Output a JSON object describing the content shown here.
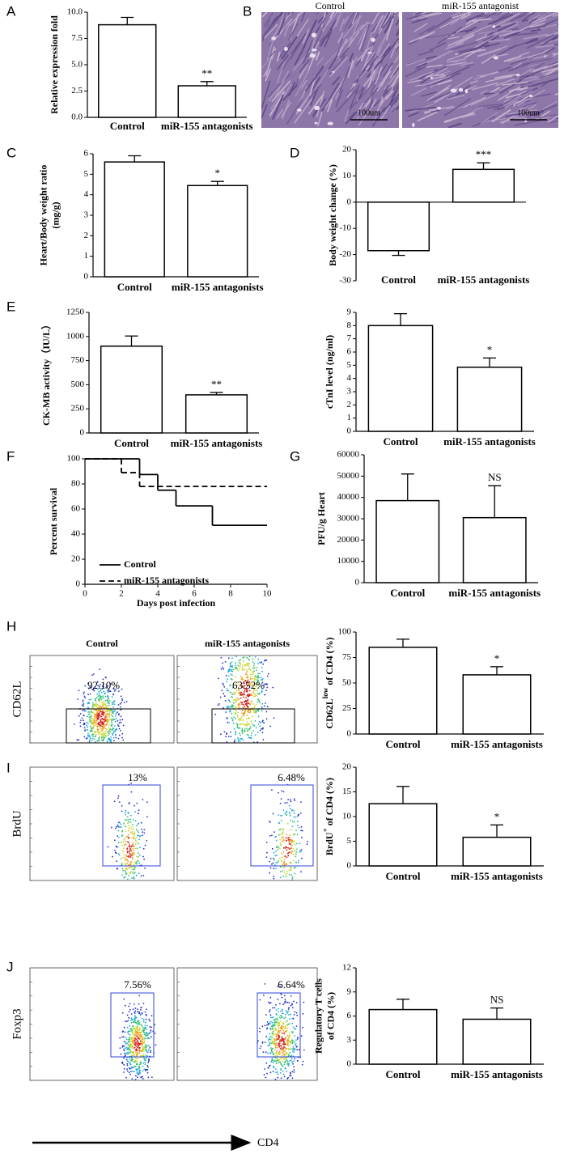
{
  "chart_data": [
    {
      "type": "bar",
      "panel": "A",
      "ylabel": "Relative expression fold",
      "categories": [
        "Control",
        "miR-155 antagonists"
      ],
      "values": [
        8.8,
        3.0
      ],
      "errors": [
        0.7,
        0.4
      ],
      "annotation": "**",
      "ylim": [
        0,
        10
      ],
      "yticks": [
        {
          "value": 0,
          "label": "0.0"
        },
        2.5,
        {
          "value": 5,
          "label": "5.0"
        },
        7.5,
        {
          "value": 10,
          "label": "10.0"
        }
      ]
    },
    {
      "type": "bar",
      "panel": "C",
      "ylabel": [
        "Heart/Body weight ratio",
        "(mg/g)"
      ],
      "categories": [
        "Control",
        "miR-155 antagonists"
      ],
      "values": [
        5.6,
        4.45
      ],
      "errors": [
        0.3,
        0.2
      ],
      "annotation": "*",
      "ylim": [
        0,
        6
      ],
      "yticks": [
        0,
        1,
        2,
        3,
        4,
        5,
        6
      ]
    },
    {
      "type": "bar",
      "panel": "D",
      "ylabel": "Body weight change (%)",
      "categories": [
        "Control",
        "miR-155 antagonists"
      ],
      "values": [
        -18.5,
        12.5
      ],
      "errors": [
        1.8,
        2.5
      ],
      "annotation": "***",
      "ylim": [
        -30,
        20
      ],
      "yticks": [
        -30,
        -20,
        -10,
        0,
        10,
        20
      ]
    },
    {
      "type": "bar",
      "panel": "E",
      "ylabel": "CK-MB activity（IU/L）",
      "categories": [
        "Control",
        "miR-155 antagonists"
      ],
      "values": [
        900,
        395
      ],
      "errors": [
        105,
        25
      ],
      "annotation": "**",
      "ylim": [
        0,
        1250
      ],
      "yticks": [
        0,
        250,
        500,
        750,
        1000,
        1250
      ]
    },
    {
      "type": "bar",
      "ylabel": "cTnI level (ng/ml)",
      "categories": [
        "Control",
        "miR-155 antagonists"
      ],
      "values": [
        8.0,
        4.85
      ],
      "errors": [
        0.9,
        0.7
      ],
      "annotation": "*",
      "ylim": [
        0,
        9
      ],
      "yticks": [
        0,
        1,
        2,
        3,
        4,
        5,
        6,
        7,
        8,
        9
      ]
    },
    {
      "type": "line",
      "panel": "F",
      "ylabel": "Percent survival",
      "xlabel": "Days post infection",
      "xlim": [
        0,
        10
      ],
      "xticks": [
        0,
        2,
        4,
        6,
        8,
        10
      ],
      "ylim": [
        0,
        100
      ],
      "yticks": [
        0,
        20,
        40,
        60,
        80,
        100
      ],
      "series": [
        {
          "name": "Control",
          "color": "#000000",
          "dashed": false,
          "x": [
            0,
            3,
            4,
            5,
            7
          ],
          "values": [
            100,
            87.5,
            75,
            62.5,
            47
          ]
        },
        {
          "name": "miR-155 antagonists",
          "color": "#000000",
          "dashed": true,
          "x": [
            0,
            2,
            3
          ],
          "values": [
            100,
            89,
            78
          ]
        }
      ]
    },
    {
      "type": "bar",
      "panel": "G",
      "ylabel": "PFU/g Heart",
      "categories": [
        "Control",
        "miR-155 antagonists"
      ],
      "values": [
        38500,
        30500
      ],
      "errors": [
        12500,
        15000
      ],
      "annotation": "NS",
      "ylim": [
        0,
        60000
      ],
      "yticks": [
        0,
        10000,
        20000,
        30000,
        40000,
        50000,
        60000
      ]
    },
    {
      "type": "bar",
      "panel": "H",
      "ylabel_parts": [
        {
          "text": "CD62L",
          "sup": false
        },
        {
          "text": "low",
          "sup": true
        },
        {
          "text": " of CD4 (%)",
          "sup": false
        }
      ],
      "categories": [
        "Control",
        "miR-155 antagonists"
      ],
      "values": [
        85,
        58
      ],
      "errors": [
        8,
        8
      ],
      "annotation": "*",
      "ylim": [
        0,
        100
      ],
      "yticks": [
        0,
        25,
        50,
        75,
        100
      ]
    },
    {
      "type": "bar",
      "panel": "I",
      "ylabel_parts": [
        {
          "text": "BrdU",
          "sup": false
        },
        {
          "text": "+",
          "sup": true
        },
        {
          "text": " of CD4 (%)",
          "sup": false
        }
      ],
      "categories": [
        "Control",
        "miR-155 antagonists"
      ],
      "values": [
        12.6,
        5.8
      ],
      "errors": [
        3.5,
        2.5
      ],
      "annotation": "*",
      "ylim": [
        0,
        20
      ],
      "yticks": [
        0,
        5,
        10,
        15,
        20
      ]
    },
    {
      "type": "bar",
      "panel": "J",
      "ylabel": [
        "Regulatory T cells",
        "of CD4 (%)"
      ],
      "categories": [
        "Control",
        "miR-155 antagonists"
      ],
      "values": [
        6.8,
        5.6
      ],
      "errors": [
        1.3,
        1.4
      ],
      "annotation": "NS",
      "ylim": [
        0,
        12
      ],
      "yticks": [
        0,
        3,
        6,
        9,
        12
      ]
    }
  ],
  "histology": {
    "panel": "B",
    "images": [
      {
        "label": "Control",
        "scale": "100um"
      },
      {
        "label": "miR-155 antagonist",
        "scale": "100um"
      }
    ]
  },
  "flow_plots": {
    "columns": [
      "Control",
      "miR-155 antagonists"
    ],
    "xlabel": "CD4",
    "rows": [
      {
        "ylabel": "CD62L",
        "percents": [
          "92.10%",
          "63.52%"
        ]
      },
      {
        "ylabel": "BrdU",
        "percents": [
          "13%",
          "6.48%"
        ]
      },
      {
        "ylabel": "Foxp3",
        "percents": [
          "7.56%",
          "6.64%"
        ]
      }
    ]
  }
}
